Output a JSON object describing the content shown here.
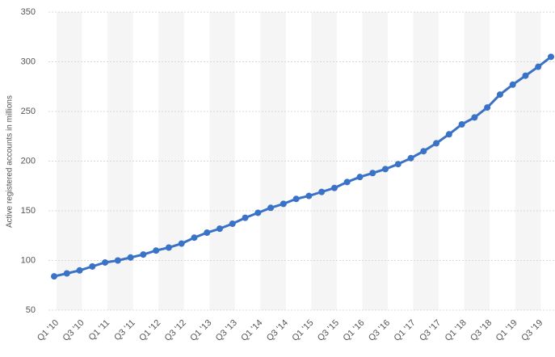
{
  "chart_data": {
    "type": "line",
    "y_label": "Active registered accounts in millions",
    "categories": [
      "Q1 '10",
      null,
      "Q3 '10",
      null,
      "Q1 '11",
      null,
      "Q3 '11",
      null,
      "Q1 '12",
      null,
      "Q3 '12",
      null,
      "Q1 '13",
      null,
      "Q3 '13",
      null,
      "Q1 '14",
      null,
      "Q3 '14",
      null,
      "Q1 '15",
      null,
      "Q3 '15",
      null,
      "Q1 '16",
      null,
      "Q3 '16",
      null,
      "Q1 '17",
      null,
      "Q3 '17",
      null,
      "Q1 '18",
      null,
      "Q3 '18",
      null,
      "Q1 '19",
      null,
      "Q3 '19",
      null
    ],
    "series": [
      {
        "color": "#3a72c8",
        "values": [
          84,
          87,
          90,
          94,
          98,
          100,
          103,
          106,
          110,
          113,
          117,
          123,
          128,
          132,
          137,
          143,
          148,
          153,
          157,
          162,
          165,
          169,
          173,
          179,
          184,
          188,
          192,
          197,
          203,
          210,
          218,
          227,
          237,
          244,
          254,
          267,
          277,
          286,
          295,
          305
        ]
      }
    ],
    "ylim": [
      50,
      350
    ],
    "yticks": [
      50,
      100,
      150,
      200,
      250,
      300,
      350
    ],
    "grid": true
  }
}
